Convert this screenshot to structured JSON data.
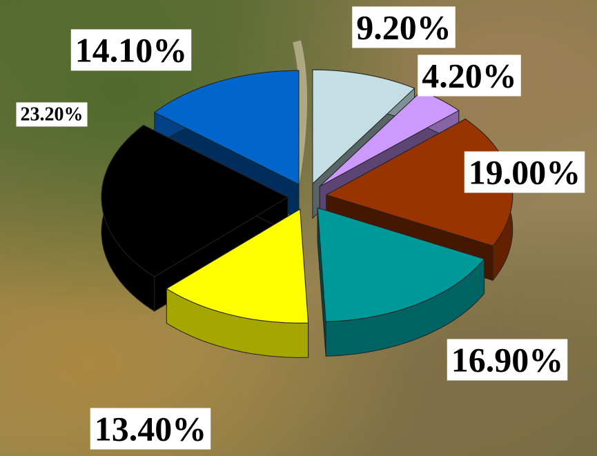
{
  "chart_data": {
    "type": "pie3d",
    "values": [
      9.2,
      4.2,
      19.0,
      16.9,
      13.4,
      23.2,
      14.1
    ],
    "value_labels": [
      "9.20%",
      "4.20%",
      "19.00%",
      "16.90%",
      "13.40%",
      "23.20%",
      "14.10%"
    ],
    "colors": [
      "#c4dfe3",
      "#cc99ff",
      "#993300",
      "#009999",
      "#ffff00",
      "#000000",
      "#0066cc"
    ]
  }
}
